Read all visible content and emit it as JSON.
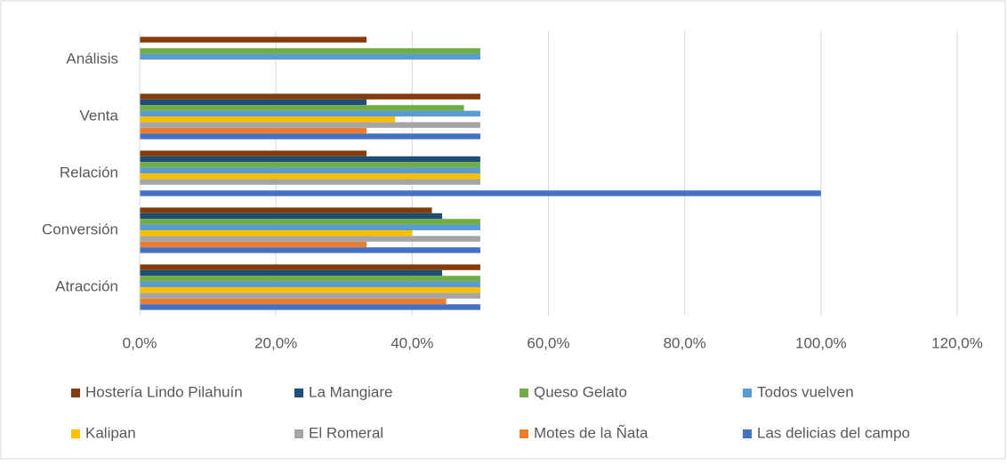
{
  "chart_data": {
    "type": "bar",
    "orientation": "horizontal",
    "categories": [
      "Atracción",
      "Conversión",
      "Relación",
      "Venta",
      "Análisis"
    ],
    "series": [
      {
        "name": "Hostería Lindo Pilahuín",
        "color": "#843c0c",
        "values": [
          50,
          42.9,
          33.3,
          50,
          33.3
        ]
      },
      {
        "name": "La Mangiare",
        "color": "#1f4e79",
        "values": [
          44.4,
          44.4,
          50,
          33.3,
          0
        ]
      },
      {
        "name": "Queso Gelato",
        "color": "#70ad47",
        "values": [
          50,
          50,
          50,
          47.6,
          50
        ]
      },
      {
        "name": "Todos vuelven",
        "color": "#5b9bd5",
        "values": [
          50,
          50,
          50,
          50,
          50
        ]
      },
      {
        "name": "Kalipan",
        "color": "#ffc000",
        "values": [
          50,
          40,
          50,
          37.5,
          0
        ]
      },
      {
        "name": "El Romeral",
        "color": "#a5a5a5",
        "values": [
          50,
          50,
          50,
          50,
          0
        ]
      },
      {
        "name": "Motes de la Ñata",
        "color": "#ed7d31",
        "values": [
          45,
          33.3,
          0,
          33.3,
          0
        ]
      },
      {
        "name": "Las delicias del campo",
        "color": "#4472c4",
        "values": [
          50,
          50,
          100,
          50,
          0
        ]
      }
    ],
    "xlim": [
      0,
      120
    ],
    "xticks": [
      {
        "value": 0,
        "label": "0,0%"
      },
      {
        "value": 20,
        "label": "20,0%"
      },
      {
        "value": 40,
        "label": "40,0%"
      },
      {
        "value": 60,
        "label": "60,0%"
      },
      {
        "value": 80,
        "label": "80,0%"
      },
      {
        "value": 100,
        "label": "100,0%"
      },
      {
        "value": 120,
        "label": "120,0%"
      }
    ],
    "grid": true,
    "legend": "bottom"
  }
}
